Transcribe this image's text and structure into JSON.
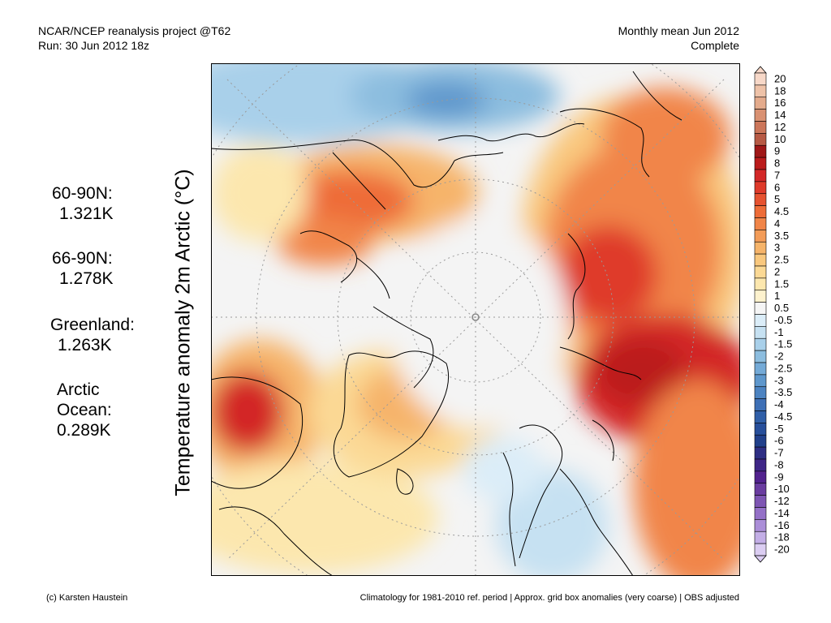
{
  "header": {
    "line1": "NCAR/NCEP reanalysis project @T62",
    "line2": "Run: 30 Jun 2012 18z",
    "right1": "Monthly mean Jun 2012",
    "right2": "Complete"
  },
  "ylabel": "Temperature anomaly 2m Arctic (°C)",
  "stats": [
    {
      "label": "60-90N:",
      "value": "1.321K"
    },
    {
      "label": "66-90N:",
      "value": "1.278K"
    },
    {
      "label": "Greenland:",
      "value": "1.263K"
    },
    {
      "label_lines": [
        "Arctic",
        "Ocean:"
      ],
      "value": "0.289K"
    }
  ],
  "colorbar": {
    "labels": [
      "20",
      "18",
      "16",
      "14",
      "12",
      "10",
      "9",
      "8",
      "7",
      "6",
      "5",
      "4.5",
      "4",
      "3.5",
      "3",
      "2.5",
      "2",
      "1.5",
      "1",
      "0.5",
      "-0.5",
      "-1",
      "-1.5",
      "-2",
      "-2.5",
      "-3",
      "-3.5",
      "-4",
      "-4.5",
      "-5",
      "-6",
      "-7",
      "-8",
      "-9",
      "-10",
      "-12",
      "-14",
      "-16",
      "-18",
      "-20"
    ],
    "colors": [
      "#f7d8c8",
      "#eec2a8",
      "#e4ab8c",
      "#d99172",
      "#cc765a",
      "#b75a45",
      "#a01818",
      "#bb1c1c",
      "#d32828",
      "#df3a2a",
      "#e65230",
      "#ee6c38",
      "#f18548",
      "#f39c58",
      "#f6b46a",
      "#f9c87e",
      "#fbd995",
      "#fce7ae",
      "#fdf2ce",
      "#f5f5f5",
      "#dbedf8",
      "#c6e1f2",
      "#a9d0ea",
      "#8cbddf",
      "#74aad7",
      "#5e97cc",
      "#4c83c1",
      "#3e70b6",
      "#305fa8",
      "#274f9b",
      "#21408b",
      "#2e2e84",
      "#3f2687",
      "#52228e",
      "#6a3ca0",
      "#7e55b3",
      "#9470c7",
      "#ab8ed8",
      "#c3aee6",
      "#dbcdf2"
    ]
  },
  "footer": {
    "left": "(c) Karsten Haustein",
    "right": "Climatology for 1981-2010 ref. period | Approx. grid box anomalies (very coarse) | OBS adjusted"
  }
}
